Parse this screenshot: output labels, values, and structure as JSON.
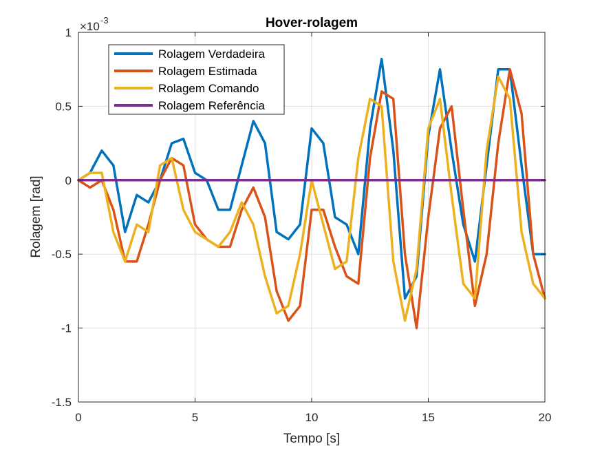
{
  "chart_data": {
    "type": "line",
    "title": "Hover-rolagem",
    "xlabel": "Tempo [s]",
    "ylabel": "Rolagem [rad]",
    "y_exponent_label": "×10",
    "y_exponent_power": "-3",
    "xlim": [
      0,
      20
    ],
    "ylim": [
      -1.5,
      1
    ],
    "x_ticks": [
      0,
      5,
      10,
      15,
      20
    ],
    "x_tick_labels": [
      "0",
      "5",
      "10",
      "15",
      "20"
    ],
    "y_ticks": [
      -1.5,
      -1,
      -0.5,
      0,
      0.5,
      1
    ],
    "y_tick_labels": [
      "-1.5",
      "-1",
      "-0.5",
      "0",
      "0.5",
      "1"
    ],
    "grid": true,
    "legend_position": "top-left",
    "x": [
      0,
      0.5,
      1,
      1.5,
      2,
      2.5,
      3,
      3.5,
      4,
      4.5,
      5,
      5.5,
      6,
      6.5,
      7,
      7.5,
      8,
      8.5,
      9,
      9.5,
      10,
      10.5,
      11,
      11.5,
      12,
      12.5,
      13,
      13.5,
      14,
      14.5,
      15,
      15.5,
      16,
      16.5,
      17,
      17.5,
      18,
      18.5,
      19,
      19.5,
      20
    ],
    "series": [
      {
        "name": "Rolagem Verdadeira",
        "color": "#0072BD",
        "values": [
          0.0,
          0.05,
          0.2,
          0.1,
          -0.35,
          -0.1,
          -0.15,
          0.0,
          0.25,
          0.28,
          0.05,
          0.0,
          -0.2,
          -0.2,
          0.1,
          0.4,
          0.25,
          -0.35,
          -0.4,
          -0.3,
          0.35,
          0.25,
          -0.25,
          -0.3,
          -0.5,
          0.35,
          0.82,
          0.2,
          -0.8,
          -0.65,
          0.3,
          0.75,
          0.2,
          -0.3,
          -0.55,
          0.1,
          0.75,
          0.75,
          0.1,
          -0.5,
          -0.5
        ]
      },
      {
        "name": "Rolagem Estimada",
        "color": "#D95319",
        "values": [
          0.0,
          -0.05,
          0.0,
          -0.2,
          -0.55,
          -0.55,
          -0.3,
          0.0,
          0.15,
          0.1,
          -0.3,
          -0.4,
          -0.45,
          -0.45,
          -0.2,
          -0.05,
          -0.25,
          -0.75,
          -0.95,
          -0.85,
          -0.2,
          -0.2,
          -0.45,
          -0.65,
          -0.7,
          0.15,
          0.6,
          0.55,
          -0.5,
          -1.0,
          -0.25,
          0.35,
          0.5,
          -0.2,
          -0.85,
          -0.5,
          0.25,
          0.75,
          0.45,
          -0.5,
          -0.8
        ]
      },
      {
        "name": "Rolagem Comando",
        "color": "#EDB120",
        "values": [
          0.0,
          0.05,
          0.05,
          -0.35,
          -0.55,
          -0.3,
          -0.35,
          0.1,
          0.15,
          -0.2,
          -0.35,
          -0.4,
          -0.45,
          -0.35,
          -0.15,
          -0.3,
          -0.65,
          -0.9,
          -0.85,
          -0.5,
          0.0,
          -0.3,
          -0.6,
          -0.55,
          0.15,
          0.55,
          0.5,
          -0.55,
          -0.95,
          -0.6,
          0.35,
          0.55,
          -0.1,
          -0.7,
          -0.8,
          0.2,
          0.7,
          0.55,
          -0.35,
          -0.7,
          -0.8
        ]
      },
      {
        "name": "Rolagem Referência",
        "color": "#7E2F8E",
        "values": [
          0,
          0,
          0,
          0,
          0,
          0,
          0,
          0,
          0,
          0,
          0,
          0,
          0,
          0,
          0,
          0,
          0,
          0,
          0,
          0,
          0,
          0,
          0,
          0,
          0,
          0,
          0,
          0,
          0,
          0,
          0,
          0,
          0,
          0,
          0,
          0,
          0,
          0,
          0,
          0,
          0
        ]
      }
    ]
  }
}
